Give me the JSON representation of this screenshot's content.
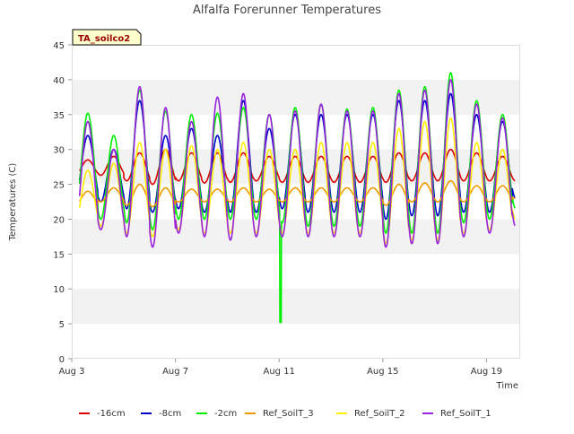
{
  "chart_data": {
    "type": "line",
    "title": "Alfalfa Forerunner Temperatures",
    "xlabel": "Time",
    "ylabel": "Temperatures (C)",
    "ylim": [
      0,
      45
    ],
    "yticks": [
      0,
      5,
      10,
      15,
      20,
      25,
      30,
      35,
      40,
      45
    ],
    "xlim": [
      3,
      20.3
    ],
    "xticks": [
      3,
      7,
      11,
      15,
      19
    ],
    "xtick_labels": [
      "Aug 3",
      "Aug 7",
      "Aug 11",
      "Aug 15",
      "Aug 19"
    ],
    "badge": "TA_soilco2",
    "grid": "horizontal alternating bands",
    "legend_position": "bottom",
    "x_start": 3.3,
    "x_end": 20.1,
    "daily_cycle": {
      "days": [
        3,
        4,
        5,
        6,
        7,
        8,
        9,
        10,
        11,
        12,
        13,
        14,
        15,
        16,
        17,
        18,
        19,
        20
      ],
      "peak_hour_fraction": 0.62
    },
    "series": [
      {
        "name": "-16cm",
        "color": "#dd0000",
        "daily_max": [
          28.5,
          29.0,
          29.5,
          30.0,
          29.5,
          29.5,
          29.5,
          29.0,
          29.0,
          29.0,
          29.0,
          29.0,
          29.5,
          29.5,
          30.0,
          29.5,
          29.0,
          29.0
        ],
        "daily_min": [
          26.3,
          26.3,
          25.5,
          25.0,
          25.5,
          25.2,
          25.3,
          25.5,
          25.3,
          25.3,
          25.3,
          25.3,
          25.3,
          25.5,
          25.5,
          25.5,
          25.5,
          25.5
        ]
      },
      {
        "name": "-8cm",
        "color": "#0000cc",
        "daily_max": [
          32.0,
          30.0,
          37.0,
          32.0,
          33.0,
          32.0,
          37.0,
          33.0,
          35.0,
          35.0,
          35.0,
          35.0,
          37.0,
          37.0,
          38.0,
          35.0,
          34.0,
          33.0
        ],
        "daily_min": [
          23.0,
          22.5,
          21.5,
          21.0,
          21.5,
          21.0,
          21.0,
          21.0,
          21.5,
          21.0,
          21.0,
          21.0,
          20.0,
          20.5,
          20.5,
          21.0,
          21.0,
          23.0
        ]
      },
      {
        "name": "-2cm",
        "color": "#00ee00",
        "daily_max": [
          35.2,
          32.0,
          38.5,
          35.5,
          35.0,
          35.2,
          36.0,
          35.0,
          36.0,
          36.5,
          35.8,
          36.0,
          38.5,
          39.0,
          41.0,
          37.0,
          35.0,
          34.0
        ],
        "daily_min": [
          21.0,
          20.0,
          19.5,
          18.5,
          20.0,
          20.0,
          20.0,
          20.0,
          19.5,
          19.0,
          19.0,
          19.0,
          18.0,
          18.0,
          18.0,
          19.5,
          20.0,
          21.5
        ]
      },
      {
        "name": "Ref_SoilT_3",
        "color": "#ee9900",
        "daily_max": [
          24.0,
          24.5,
          25.0,
          24.5,
          24.3,
          24.3,
          24.5,
          24.3,
          24.5,
          24.5,
          24.5,
          24.5,
          25.0,
          25.2,
          25.5,
          24.8,
          24.8,
          24.0
        ],
        "daily_min": [
          22.0,
          22.5,
          22.0,
          21.8,
          22.5,
          22.5,
          22.5,
          22.5,
          22.5,
          22.5,
          22.5,
          22.5,
          22.0,
          22.5,
          22.5,
          22.5,
          22.5,
          23.0
        ]
      },
      {
        "name": "Ref_SoilT_2",
        "color": "#ffee00",
        "daily_max": [
          27.0,
          28.0,
          31.0,
          30.0,
          30.5,
          30.0,
          31.0,
          30.0,
          30.0,
          31.0,
          31.0,
          31.0,
          33.0,
          34.0,
          34.5,
          31.0,
          30.0,
          30.0
        ],
        "daily_min": [
          19.5,
          19.0,
          18.0,
          17.5,
          18.5,
          18.0,
          18.0,
          18.0,
          18.0,
          18.0,
          18.0,
          18.0,
          16.5,
          17.0,
          17.0,
          18.0,
          18.5,
          20.0
        ]
      },
      {
        "name": "Ref_SoilT_1",
        "color": "#9922dd",
        "daily_max": [
          34.0,
          30.0,
          39.0,
          36.0,
          34.0,
          37.5,
          38.0,
          35.0,
          35.5,
          36.5,
          35.5,
          35.5,
          38.0,
          38.5,
          40.0,
          36.5,
          34.5,
          33.0
        ],
        "daily_min": [
          19.0,
          18.5,
          17.5,
          16.0,
          18.0,
          17.5,
          17.0,
          17.5,
          17.5,
          17.5,
          17.5,
          17.5,
          16.0,
          16.5,
          16.5,
          17.5,
          18.0,
          19.0
        ]
      }
    ],
    "anomalies": [
      {
        "series": "-2cm",
        "x": 11.05,
        "y": 5.2
      }
    ]
  }
}
